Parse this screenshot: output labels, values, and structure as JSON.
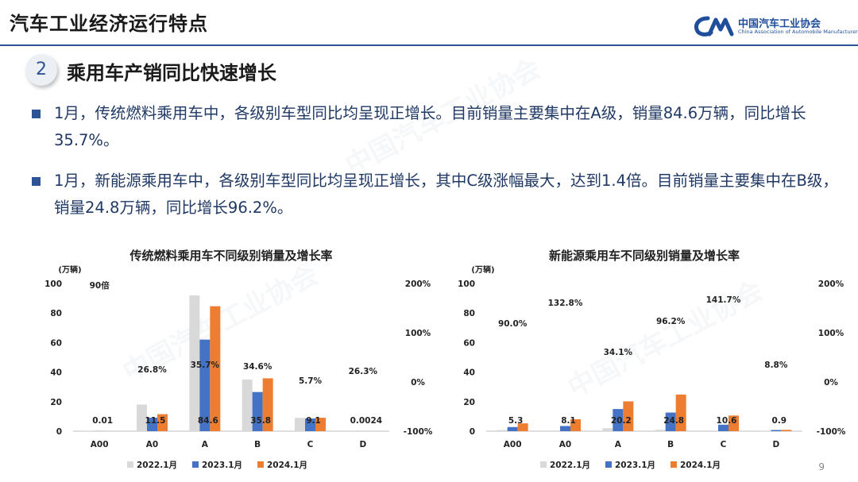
{
  "header": {
    "title": "汽车工业经济运行特点",
    "logo_cn": "中国汽车工业协会",
    "logo_en": "China Association of Automobile Manufacturers"
  },
  "section": {
    "number": "2",
    "title": "乘用车产销同比快速增长"
  },
  "bullets": [
    {
      "text": "1月，传统燃料乘用车中，各级别车型同比均呈现正增长。目前销量主要集中在A级，销量84.6万辆，同比增长35.7%。"
    },
    {
      "text": "1月，新能源乘用车中，各级别车型同比均呈现正增长，其中C级涨幅最大，达到1.4倍。目前销量主要集中在B级，销量24.8万辆，同比增长96.2%。"
    }
  ],
  "colors": {
    "s2022": "#d9d9d9",
    "s2023": "#4472c4",
    "s2024": "#ed7d31"
  },
  "chart_data": [
    {
      "type": "bar",
      "title": "传统燃料乘用车不同级别销量及增长率",
      "ylabel": "(万辆)",
      "ylim": [
        0,
        100
      ],
      "y2lim": [
        -100,
        200
      ],
      "yticks": [
        "0",
        "20",
        "40",
        "60",
        "80",
        "100"
      ],
      "y2ticks": [
        "-100%",
        "0%",
        "100%",
        "200%"
      ],
      "categories": [
        "A00",
        "A0",
        "A",
        "B",
        "C",
        "D"
      ],
      "series": [
        {
          "name": "2022.1月",
          "values": [
            0.1,
            18,
            92,
            35,
            9,
            0.05
          ]
        },
        {
          "name": "2023.1月",
          "values": [
            0.05,
            9.1,
            62,
            26.5,
            8.6,
            0.02
          ]
        },
        {
          "name": "2024.1月",
          "values": [
            0.01,
            11.5,
            84.6,
            35.8,
            9.1,
            0.0024
          ]
        }
      ],
      "value_labels": [
        "0.01",
        "11.5",
        "84.6",
        "35.8",
        "9.1",
        "0.0024"
      ],
      "growth_labels": [
        "90倍",
        "26.8%",
        "35.7%",
        "34.6%",
        "5.7%",
        "26.3%"
      ],
      "legend": "bottom"
    },
    {
      "type": "bar",
      "title": "新能源乘用车不同级别销量及增长率",
      "ylabel": "(万辆)",
      "ylim": [
        0,
        100
      ],
      "y2lim": [
        -100,
        200
      ],
      "yticks": [
        "0",
        "20",
        "40",
        "60",
        "80",
        "100"
      ],
      "y2ticks": [
        "-100%",
        "0%",
        "100%",
        "200%"
      ],
      "categories": [
        "A00",
        "A0",
        "A",
        "B",
        "C",
        "D"
      ],
      "series": [
        {
          "name": "2022.1月",
          "values": [
            0.8,
            0.5,
            2,
            1,
            0.5,
            0.2
          ]
        },
        {
          "name": "2023.1月",
          "values": [
            2.8,
            3.5,
            15,
            12.6,
            4.4,
            0.8
          ]
        },
        {
          "name": "2024.1月",
          "values": [
            5.3,
            8.1,
            20.2,
            24.8,
            10.6,
            0.9
          ]
        }
      ],
      "value_labels": [
        "5.3",
        "8.1",
        "20.2",
        "24.8",
        "10.6",
        "0.9"
      ],
      "growth_labels": [
        "90.0%",
        "132.8%",
        "34.1%",
        "96.2%",
        "141.7%",
        "8.8%"
      ],
      "legend": "bottom"
    }
  ],
  "page": {
    "number": "9"
  }
}
